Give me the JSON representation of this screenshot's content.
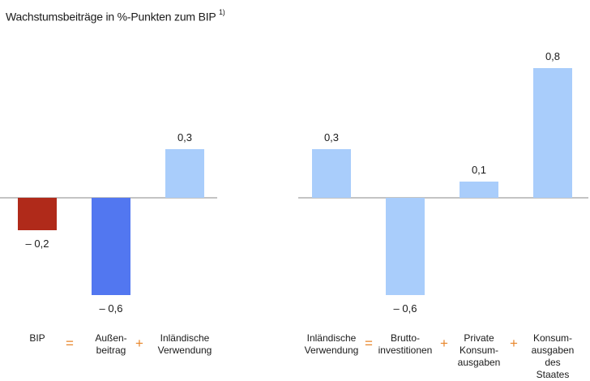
{
  "title": "Wachstumsbeiträge in %-Punkten zum BIP",
  "title_footnote": "1)",
  "chart_data": [
    {
      "type": "bar",
      "categories": [
        "BIP",
        "Außen-\nbeitrag",
        "Inländische\nVerwendung"
      ],
      "values": [
        -0.2,
        -0.6,
        0.3
      ],
      "value_labels": [
        "– 0,2",
        "– 0,6",
        "0,3"
      ],
      "colors": [
        "#b02a1a",
        "#5277f0",
        "#a9cdfb"
      ],
      "operators": [
        "=",
        "+"
      ],
      "ylim": [
        -0.6,
        0.8
      ]
    },
    {
      "type": "bar",
      "categories": [
        "Inländische\nVerwendung",
        "Brutto-\ninvestitionen",
        "Private\nKonsum-\nausgaben",
        "Konsum-\nausgaben\ndes Staates"
      ],
      "values": [
        0.3,
        -0.6,
        0.1,
        0.8
      ],
      "value_labels": [
        "0,3",
        "– 0,6",
        "0,1",
        "0,8"
      ],
      "colors": [
        "#a9cdfb",
        "#a9cdfb",
        "#a9cdfb",
        "#a9cdfb"
      ],
      "operators": [
        "=",
        "+",
        "+"
      ],
      "ylim": [
        -0.6,
        0.8
      ]
    }
  ],
  "colors": {
    "operator": "#e8862a",
    "axis": "#888888"
  }
}
